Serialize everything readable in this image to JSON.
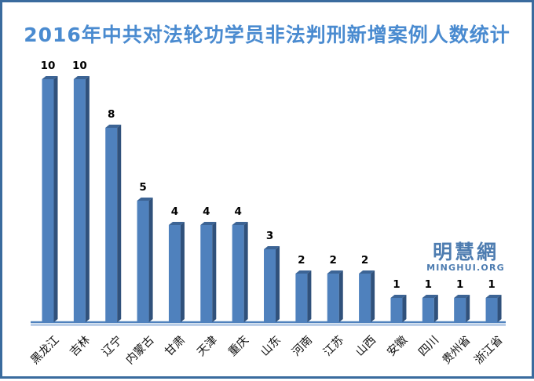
{
  "chart_data": {
    "type": "bar",
    "title": "2016年中共对法轮功学员非法判刑新增案例人数统计",
    "categories": [
      "黑龙江",
      "吉林",
      "辽宁",
      "内蒙古",
      "甘肃",
      "天津",
      "重庆",
      "山东",
      "河南",
      "江苏",
      "山西",
      "安徽",
      "四川",
      "贵州省",
      "浙江省"
    ],
    "values": [
      10,
      10,
      8,
      5,
      4,
      4,
      4,
      3,
      2,
      2,
      2,
      1,
      1,
      1,
      1
    ],
    "xlabel": "",
    "ylabel": "",
    "ylim": [
      0,
      10
    ],
    "grid": false,
    "legend": false,
    "style": "3d-column",
    "data_labels_shown": true,
    "x_tick_rotation_deg": 45
  },
  "logo": {
    "cjk": "明慧網",
    "latin": "MINGHUI.ORG"
  },
  "colors": {
    "bar_front": "#4f81bd",
    "bar_side": "#30517b",
    "bar_top": "#3c6495",
    "baseline_main": "#4f81bd",
    "baseline_light": "#9ab7dd",
    "title_text": "#4a8bd0",
    "frame_border": "#3a6b9e",
    "label_text": "#000000"
  }
}
